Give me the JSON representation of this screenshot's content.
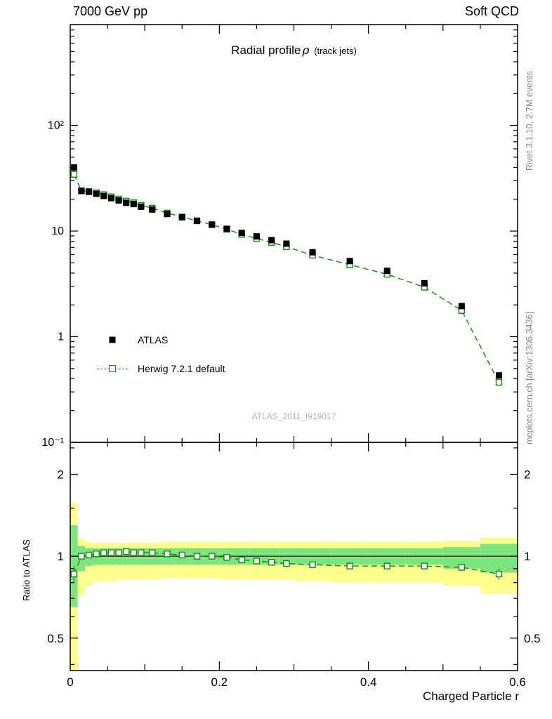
{
  "header": {
    "left": "7000 GeV pp",
    "right": "Soft QCD"
  },
  "title": {
    "main": "Radial profile",
    "rho": "ρ",
    "sub": "(track jets)"
  },
  "legend": [
    {
      "label": "ATLAS"
    },
    {
      "label": "Herwig 7.2.1 default"
    }
  ],
  "watermark": "ATLAS_2011_I919017",
  "side_notes": {
    "top": "Rivet 3.1.10,  2.7M events",
    "bottom": "mcplots.cern.ch [arXiv:1306.3436]"
  },
  "axis_labels": {
    "x": "Charged Particle r",
    "ratio_y": "Ratio to ATLAS"
  },
  "colors": {
    "mc": "#1e8e1e",
    "band_yellow": "#ffff8c",
    "band_green": "#7de57d",
    "data": "#000000",
    "frame": "#000000",
    "watermark": "#b3b3b3",
    "side_note": "#8a8a8a"
  },
  "chart_data": {
    "type": "line",
    "title": "Radial profile ρ (track jets)",
    "xlabel": "Charged Particle r",
    "ylabel": "",
    "ratio_ylabel": "Ratio to ATLAS",
    "yscale": "log",
    "xlim": [
      0,
      0.6
    ],
    "ylim_main": [
      0.1,
      900
    ],
    "ylim_ratio": [
      0.38,
      2.62
    ],
    "x": [
      0.005,
      0.015,
      0.025,
      0.035,
      0.045,
      0.055,
      0.065,
      0.075,
      0.085,
      0.095,
      0.11,
      0.13,
      0.15,
      0.17,
      0.19,
      0.21,
      0.23,
      0.25,
      0.27,
      0.29,
      0.325,
      0.375,
      0.425,
      0.475,
      0.525,
      0.575
    ],
    "bin_edges": [
      0,
      0.01,
      0.02,
      0.03,
      0.04,
      0.05,
      0.06,
      0.07,
      0.08,
      0.09,
      0.1,
      0.12,
      0.14,
      0.16,
      0.18,
      0.2,
      0.22,
      0.24,
      0.26,
      0.28,
      0.3,
      0.35,
      0.4,
      0.45,
      0.5,
      0.55,
      0.6
    ],
    "series": [
      {
        "name": "ATLAS",
        "marker": "filled-square",
        "color": "#000000",
        "values": [
          40,
          24,
          23.5,
          22.5,
          21.5,
          20.5,
          19.5,
          18.5,
          18,
          17,
          16,
          14.5,
          13.5,
          12.5,
          11.5,
          10.5,
          9.6,
          8.9,
          8.2,
          7.6,
          6.3,
          5.2,
          4.2,
          3.2,
          1.95,
          0.43
        ]
      },
      {
        "name": "Herwig 7.2.1 default",
        "marker": "open-square",
        "color": "#1e8e1e",
        "linestyle": "dashed",
        "values": [
          34.4,
          24.0,
          23.7,
          23.0,
          22.1,
          21.1,
          20.1,
          19.2,
          18.5,
          17.5,
          16.5,
          14.8,
          13.6,
          12.5,
          11.5,
          10.4,
          9.3,
          8.5,
          7.8,
          7.1,
          5.9,
          4.8,
          3.9,
          2.94,
          1.77,
          0.37
        ]
      }
    ],
    "ratio": {
      "name": "Herwig / ATLAS",
      "values": [
        0.86,
        1.0,
        1.01,
        1.02,
        1.03,
        1.03,
        1.03,
        1.04,
        1.03,
        1.03,
        1.03,
        1.02,
        1.01,
        1.0,
        1.0,
        0.99,
        0.97,
        0.96,
        0.95,
        0.94,
        0.93,
        0.92,
        0.92,
        0.92,
        0.91,
        0.86
      ],
      "err": [
        0.06,
        0.02,
        0.015,
        0.015,
        0.015,
        0.015,
        0.015,
        0.015,
        0.015,
        0.015,
        0.012,
        0.012,
        0.012,
        0.012,
        0.012,
        0.012,
        0.012,
        0.012,
        0.012,
        0.012,
        0.012,
        0.012,
        0.015,
        0.02,
        0.025,
        0.04
      ],
      "band_yellow": [
        [
          0.33,
          1.57
        ],
        [
          0.72,
          1.16
        ],
        [
          0.78,
          1.13
        ],
        [
          0.81,
          1.12
        ],
        [
          0.81,
          1.12
        ],
        [
          0.81,
          1.12
        ],
        [
          0.82,
          1.12
        ],
        [
          0.82,
          1.12
        ],
        [
          0.82,
          1.12
        ],
        [
          0.82,
          1.12
        ],
        [
          0.82,
          1.12
        ],
        [
          0.83,
          1.13
        ],
        [
          0.83,
          1.13
        ],
        [
          0.83,
          1.13
        ],
        [
          0.83,
          1.13
        ],
        [
          0.82,
          1.13
        ],
        [
          0.82,
          1.13
        ],
        [
          0.82,
          1.13
        ],
        [
          0.82,
          1.13
        ],
        [
          0.82,
          1.13
        ],
        [
          0.81,
          1.13
        ],
        [
          0.8,
          1.13
        ],
        [
          0.8,
          1.13
        ],
        [
          0.8,
          1.13
        ],
        [
          0.78,
          1.14
        ],
        [
          0.73,
          1.17
        ]
      ],
      "band_green": [
        [
          0.65,
          1.3
        ],
        [
          0.88,
          1.09
        ],
        [
          0.92,
          1.07
        ],
        [
          0.93,
          1.07
        ],
        [
          0.93,
          1.07
        ],
        [
          0.93,
          1.07
        ],
        [
          0.93,
          1.07
        ],
        [
          0.93,
          1.07
        ],
        [
          0.93,
          1.07
        ],
        [
          0.93,
          1.07
        ],
        [
          0.93,
          1.07
        ],
        [
          0.93,
          1.07
        ],
        [
          0.93,
          1.07
        ],
        [
          0.93,
          1.07
        ],
        [
          0.93,
          1.07
        ],
        [
          0.93,
          1.07
        ],
        [
          0.93,
          1.07
        ],
        [
          0.93,
          1.07
        ],
        [
          0.93,
          1.07
        ],
        [
          0.93,
          1.07
        ],
        [
          0.93,
          1.07
        ],
        [
          0.93,
          1.07
        ],
        [
          0.93,
          1.07
        ],
        [
          0.93,
          1.07
        ],
        [
          0.9,
          1.08
        ],
        [
          0.87,
          1.11
        ]
      ]
    },
    "y_ticks_main": [
      {
        "v": 100,
        "label": "10²"
      },
      {
        "v": 10,
        "label": "10"
      },
      {
        "v": 1,
        "label": "1"
      },
      {
        "v": 0.1,
        "label": "10⁻¹"
      }
    ],
    "y_ticks_ratio": [
      {
        "v": 2,
        "label": "2"
      },
      {
        "v": 1,
        "label": "1"
      },
      {
        "v": 0.5,
        "label": "0.5"
      }
    ],
    "x_ticks": [
      {
        "v": 0,
        "label": "0"
      },
      {
        "v": 0.2,
        "label": "0.2"
      },
      {
        "v": 0.4,
        "label": "0.4"
      },
      {
        "v": 0.6,
        "label": "0.6"
      }
    ],
    "legend_position": "left-middle",
    "grid": false
  }
}
